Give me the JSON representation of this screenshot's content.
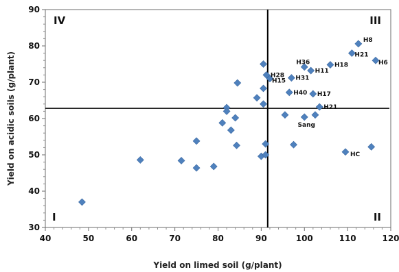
{
  "chart_data": {
    "type": "scatter",
    "title": "",
    "xlabel": "Yield on limed soil (g/plant)",
    "ylabel": "Yield on acidic soils (g/plant)",
    "xlim": [
      40,
      120
    ],
    "ylim": [
      30,
      90
    ],
    "x_ticks": [
      40,
      50,
      60,
      70,
      80,
      90,
      100,
      110,
      120
    ],
    "y_ticks": [
      30,
      40,
      50,
      60,
      70,
      80,
      90
    ],
    "x_tick_labels": [
      "40",
      "50",
      "60",
      "70",
      "80",
      "90",
      "100",
      "110",
      "120"
    ],
    "y_tick_labels": [
      "30",
      "40",
      "50",
      "60",
      "70",
      "80",
      "90"
    ],
    "grid": false,
    "reference_lines": {
      "x": 91.5,
      "y": 62.8
    },
    "marker_color": "#4f81bd",
    "quadrant_labels": [
      {
        "label": "IV",
        "corner": "top-left"
      },
      {
        "label": "III",
        "corner": "top-right"
      },
      {
        "label": "I",
        "corner": "bottom-left"
      },
      {
        "label": "II",
        "corner": "bottom-right"
      }
    ],
    "points": [
      {
        "x": 48.5,
        "y": 37.0,
        "label": ""
      },
      {
        "x": 62.0,
        "y": 48.6,
        "label": ""
      },
      {
        "x": 71.5,
        "y": 48.4,
        "label": ""
      },
      {
        "x": 75.0,
        "y": 53.8,
        "label": ""
      },
      {
        "x": 75.0,
        "y": 46.4,
        "label": ""
      },
      {
        "x": 79.0,
        "y": 46.8,
        "label": ""
      },
      {
        "x": 81.0,
        "y": 58.8,
        "label": ""
      },
      {
        "x": 82.0,
        "y": 63.0,
        "label": ""
      },
      {
        "x": 82.0,
        "y": 62.0,
        "label": ""
      },
      {
        "x": 83.0,
        "y": 56.8,
        "label": ""
      },
      {
        "x": 84.0,
        "y": 60.2,
        "label": ""
      },
      {
        "x": 84.3,
        "y": 52.6,
        "label": ""
      },
      {
        "x": 84.5,
        "y": 69.8,
        "label": ""
      },
      {
        "x": 89.0,
        "y": 65.7,
        "label": ""
      },
      {
        "x": 90.0,
        "y": 49.6,
        "label": ""
      },
      {
        "x": 90.5,
        "y": 68.3,
        "label": ""
      },
      {
        "x": 90.5,
        "y": 64.0,
        "label": ""
      },
      {
        "x": 90.5,
        "y": 75.0,
        "label": ""
      },
      {
        "x": 91.0,
        "y": 53.0,
        "label": ""
      },
      {
        "x": 91.0,
        "y": 50.0,
        "label": ""
      },
      {
        "x": 91.2,
        "y": 72.0,
        "label": "H28"
      },
      {
        "x": 92.0,
        "y": 71.0,
        "label": "H15"
      },
      {
        "x": 95.5,
        "y": 61.0,
        "label": ""
      },
      {
        "x": 96.5,
        "y": 67.2,
        "label": "H40"
      },
      {
        "x": 97.0,
        "y": 71.2,
        "label": "H31"
      },
      {
        "x": 97.5,
        "y": 52.8,
        "label": ""
      },
      {
        "x": 100.0,
        "y": 60.4,
        "label": "Sang"
      },
      {
        "x": 100.0,
        "y": 74.2,
        "label": "H36"
      },
      {
        "x": 101.5,
        "y": 73.2,
        "label": "H11"
      },
      {
        "x": 102.0,
        "y": 66.8,
        "label": "H17"
      },
      {
        "x": 102.5,
        "y": 61.0,
        "label": ""
      },
      {
        "x": 103.5,
        "y": 63.2,
        "label": "H21"
      },
      {
        "x": 106.0,
        "y": 74.8,
        "label": "H18"
      },
      {
        "x": 109.5,
        "y": 50.8,
        "label": "HC"
      },
      {
        "x": 111.0,
        "y": 78.0,
        "label": "H21"
      },
      {
        "x": 112.5,
        "y": 80.6,
        "label": "H8"
      },
      {
        "x": 115.5,
        "y": 52.2,
        "label": ""
      },
      {
        "x": 116.5,
        "y": 76.0,
        "label": "H6"
      }
    ]
  }
}
